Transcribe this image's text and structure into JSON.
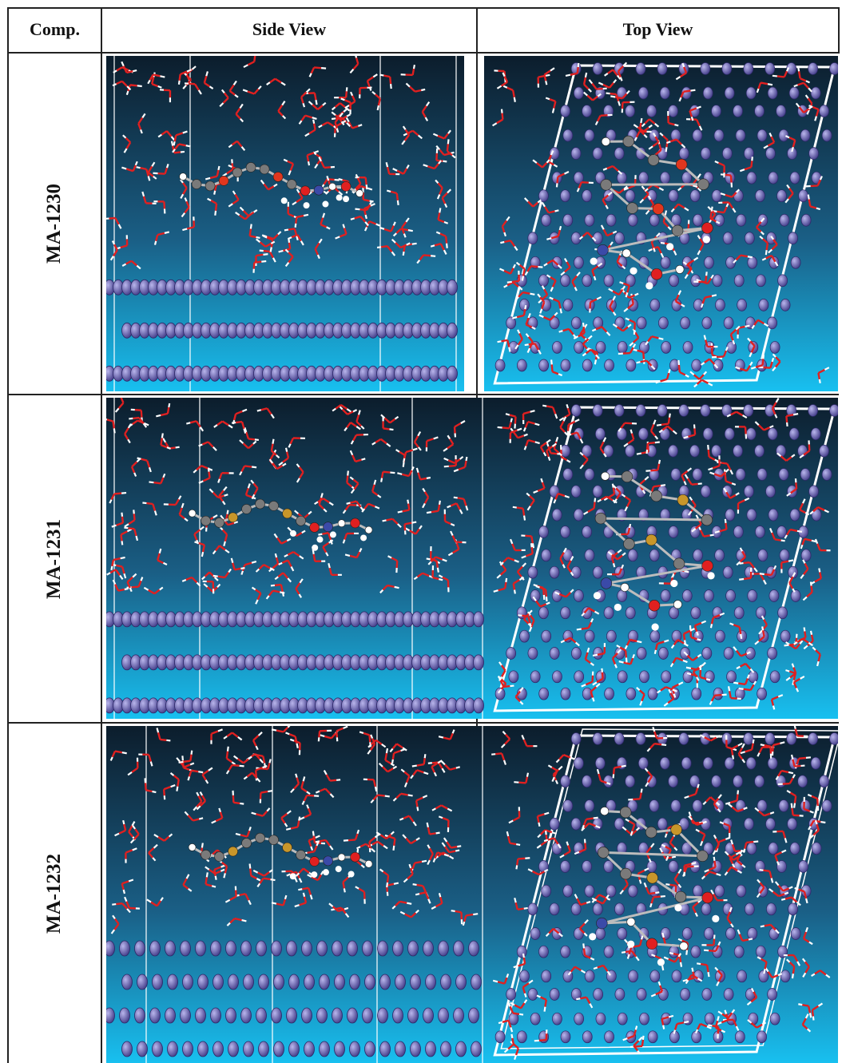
{
  "table": {
    "headers": {
      "comp": "Comp.",
      "side": "Side View",
      "top": "Top View"
    },
    "rows": [
      {
        "compound": "MA-1230",
        "heteroatom_color": "#e0361e"
      },
      {
        "compound": "MA-1231",
        "heteroatom_color": "#c8962a"
      },
      {
        "compound": "MA-1232",
        "heteroatom_color": "#c8962a"
      }
    ]
  },
  "colors": {
    "surface_atom": "#6f6ab0",
    "oxygen": "#e02020",
    "hydrogen": "#ffffff",
    "carbon": "#7a7a7a",
    "nitrogen": "#3a4aa8",
    "sulfur": "#c8962a",
    "bg_top": "#0c1d2c",
    "bg_bottom": "#18c0f0"
  }
}
